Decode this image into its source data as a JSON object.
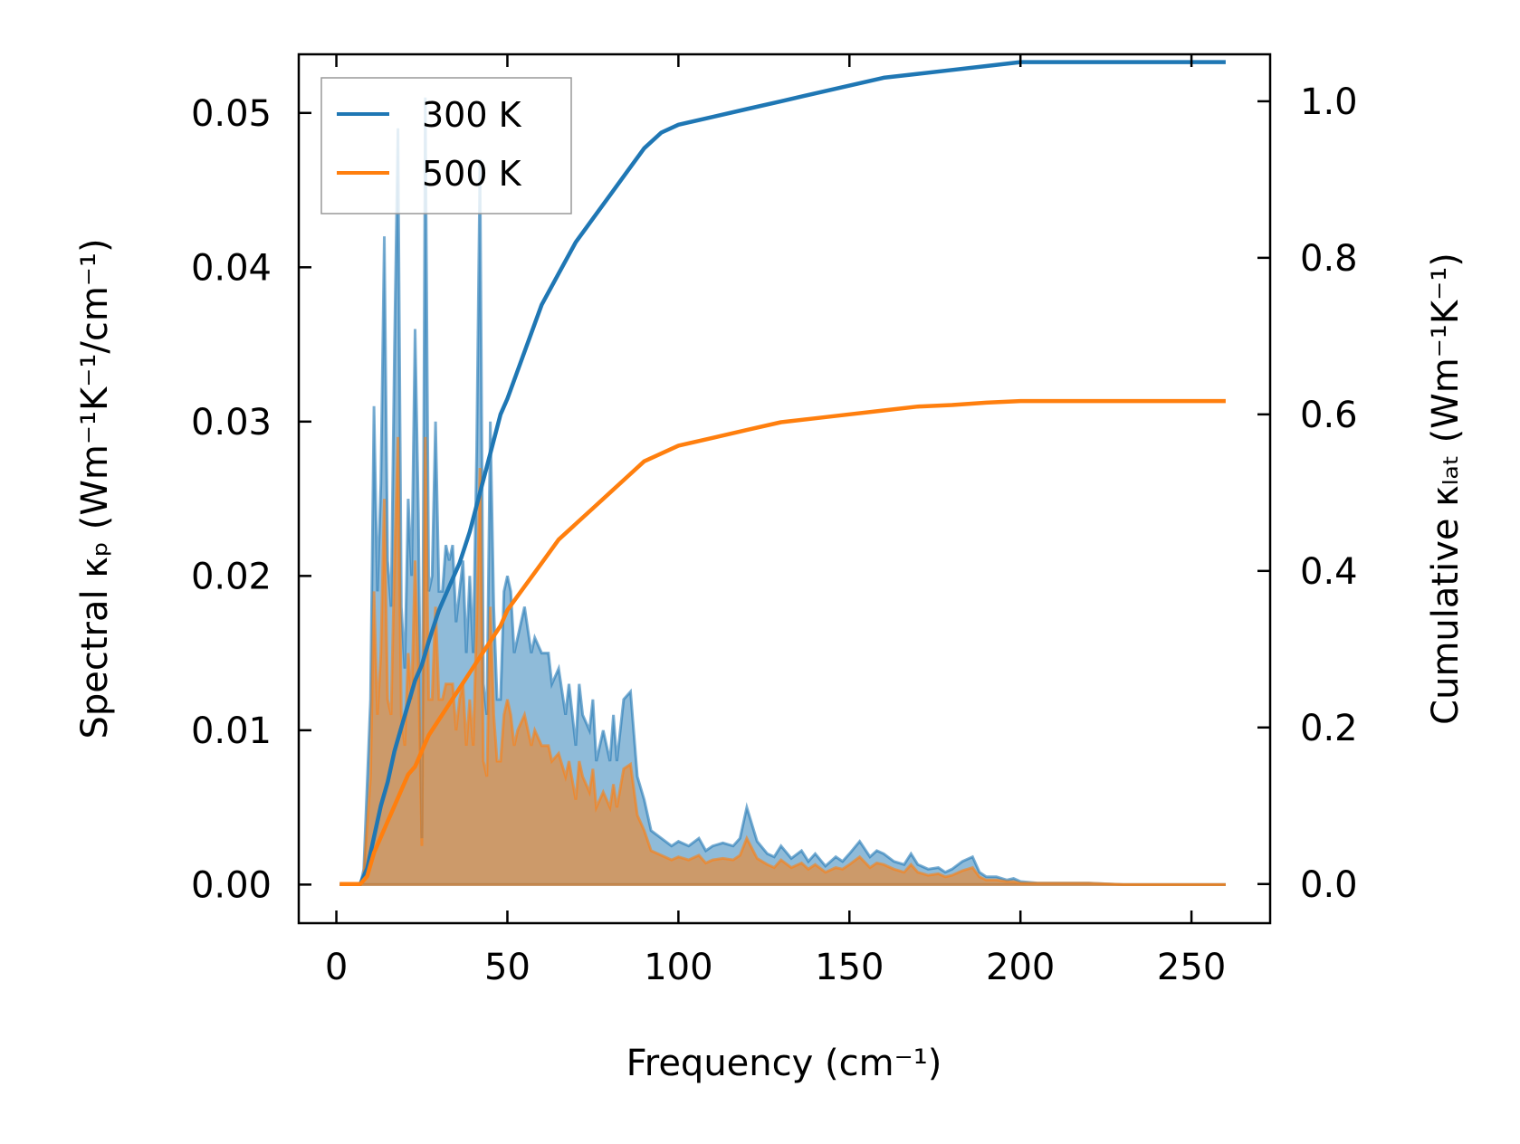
{
  "chart_data": {
    "type": "line",
    "xlabel": "Frequency (cm⁻¹)",
    "ylabel_left": "Spectral κₚ (Wm⁻¹K⁻¹/cm⁻¹)",
    "ylabel_right": "Cumulative κₗₐₜ (Wm⁻¹K⁻¹)",
    "xlim": [
      -11,
      273
    ],
    "ylim_left": [
      -0.0025,
      0.0538
    ],
    "ylim_right": [
      -0.05,
      1.06
    ],
    "xticks": [
      0,
      50,
      100,
      150,
      200,
      250
    ],
    "xtick_labels": [
      "0",
      "50",
      "100",
      "150",
      "200",
      "250"
    ],
    "yticks_left": [
      0.0,
      0.01,
      0.02,
      0.03,
      0.04,
      0.05
    ],
    "ytick_labels_left": [
      "0.00",
      "0.01",
      "0.02",
      "0.03",
      "0.04",
      "0.05"
    ],
    "yticks_right": [
      0.0,
      0.2,
      0.4,
      0.6,
      0.8,
      1.0
    ],
    "ytick_labels_right": [
      "0.0",
      "0.2",
      "0.4",
      "0.6",
      "0.8",
      "1.0"
    ],
    "legend_position": "top-left",
    "series": [
      {
        "name": "300 K",
        "color": "#1f77b4",
        "fill_color": "#1f77b4",
        "spectral": {
          "x": [
            1,
            5,
            7,
            8,
            10,
            11,
            12,
            13,
            14,
            15,
            16,
            17,
            18,
            19,
            20,
            21,
            22,
            23,
            24,
            25,
            26,
            27,
            28,
            29,
            30,
            31,
            32,
            33,
            34,
            35,
            36,
            37,
            38,
            39,
            40,
            41,
            42,
            43,
            44,
            45,
            46,
            47,
            48,
            49,
            50,
            51,
            52,
            53,
            55,
            57,
            58,
            60,
            62,
            63,
            65,
            67,
            68,
            70,
            71,
            72,
            74,
            75,
            76,
            78,
            80,
            81,
            82,
            84,
            86,
            88,
            90,
            92,
            95,
            98,
            100,
            103,
            106,
            108,
            110,
            113,
            116,
            118,
            120,
            123,
            126,
            128,
            130,
            133,
            136,
            138,
            140,
            143,
            146,
            148,
            150,
            153,
            156,
            158,
            160,
            163,
            166,
            168,
            170,
            173,
            176,
            178,
            180,
            183,
            186,
            188,
            190,
            193,
            196,
            198,
            200,
            205,
            210,
            220,
            230,
            240,
            250,
            260
          ],
          "y": [
            0,
            0,
            0,
            0.001,
            0.012,
            0.031,
            0.019,
            0.026,
            0.042,
            0.021,
            0.018,
            0.035,
            0.049,
            0.018,
            0.014,
            0.025,
            0.02,
            0.036,
            0.024,
            0.003,
            0.051,
            0.019,
            0.02,
            0.03,
            0.019,
            0.019,
            0.022,
            0.021,
            0.022,
            0.017,
            0.019,
            0.021,
            0.015,
            0.02,
            0.015,
            0.028,
            0.047,
            0.013,
            0.011,
            0.03,
            0.018,
            0.012,
            0.012,
            0.019,
            0.02,
            0.019,
            0.015,
            0.016,
            0.018,
            0.015,
            0.016,
            0.015,
            0.015,
            0.013,
            0.014,
            0.011,
            0.013,
            0.009,
            0.013,
            0.011,
            0.01,
            0.012,
            0.008,
            0.01,
            0.008,
            0.011,
            0.008,
            0.012,
            0.0125,
            0.007,
            0.0055,
            0.0035,
            0.003,
            0.0025,
            0.0028,
            0.0025,
            0.003,
            0.0022,
            0.0025,
            0.0027,
            0.0025,
            0.003,
            0.005,
            0.0028,
            0.002,
            0.0018,
            0.0025,
            0.0017,
            0.0022,
            0.0015,
            0.002,
            0.0012,
            0.0018,
            0.0015,
            0.002,
            0.0028,
            0.0018,
            0.0022,
            0.002,
            0.0015,
            0.0013,
            0.002,
            0.0013,
            0.001,
            0.0011,
            0.0008,
            0.001,
            0.0015,
            0.0018,
            0.0008,
            0.0005,
            0.0005,
            0.0003,
            0.0004,
            0.0002,
            0.0001,
            0.0001,
            0.0001,
            0,
            0,
            0,
            0
          ]
        },
        "cumulative": {
          "x": [
            1,
            5,
            7,
            9,
            11,
            13,
            15,
            17,
            19,
            21,
            23,
            25,
            27,
            30,
            33,
            36,
            39,
            42,
            45,
            48,
            50,
            55,
            60,
            65,
            70,
            75,
            80,
            85,
            90,
            95,
            100,
            110,
            120,
            130,
            140,
            150,
            160,
            170,
            180,
            190,
            200,
            210,
            220,
            230,
            240,
            250,
            260
          ],
          "y": [
            0,
            0,
            0,
            0.02,
            0.06,
            0.1,
            0.13,
            0.17,
            0.2,
            0.23,
            0.26,
            0.28,
            0.31,
            0.35,
            0.38,
            0.41,
            0.45,
            0.5,
            0.55,
            0.6,
            0.62,
            0.68,
            0.74,
            0.78,
            0.82,
            0.85,
            0.88,
            0.91,
            0.94,
            0.96,
            0.97,
            0.98,
            0.99,
            1.0,
            1.01,
            1.02,
            1.03,
            1.035,
            1.04,
            1.045,
            1.05,
            1.05,
            1.05,
            1.05,
            1.05,
            1.05,
            1.05
          ]
        }
      },
      {
        "name": "500 K",
        "color": "#ff7f0e",
        "fill_color": "#ff7f0e",
        "spectral": {
          "x": [
            1,
            5,
            7,
            8,
            10,
            11,
            12,
            13,
            14,
            15,
            16,
            17,
            18,
            19,
            20,
            21,
            22,
            23,
            24,
            25,
            26,
            27,
            28,
            29,
            30,
            31,
            32,
            33,
            34,
            35,
            36,
            37,
            38,
            39,
            40,
            41,
            42,
            43,
            44,
            45,
            46,
            47,
            48,
            49,
            50,
            51,
            52,
            53,
            55,
            57,
            58,
            60,
            62,
            63,
            65,
            67,
            68,
            70,
            71,
            72,
            74,
            75,
            76,
            78,
            80,
            81,
            82,
            84,
            86,
            88,
            90,
            92,
            95,
            98,
            100,
            103,
            106,
            108,
            110,
            113,
            116,
            118,
            120,
            123,
            126,
            128,
            130,
            133,
            136,
            138,
            140,
            143,
            146,
            148,
            150,
            153,
            156,
            158,
            160,
            163,
            166,
            168,
            170,
            173,
            176,
            178,
            180,
            183,
            186,
            188,
            190,
            193,
            196,
            198,
            200,
            205,
            210,
            220,
            230,
            240,
            250,
            260
          ],
          "y": [
            0,
            0,
            0,
            0.0006,
            0.007,
            0.019,
            0.011,
            0.015,
            0.025,
            0.012,
            0.011,
            0.021,
            0.029,
            0.011,
            0.009,
            0.015,
            0.012,
            0.021,
            0.014,
            0.0025,
            0.029,
            0.012,
            0.012,
            0.018,
            0.012,
            0.012,
            0.013,
            0.013,
            0.013,
            0.01,
            0.012,
            0.013,
            0.009,
            0.012,
            0.009,
            0.017,
            0.027,
            0.008,
            0.007,
            0.018,
            0.011,
            0.008,
            0.008,
            0.011,
            0.012,
            0.011,
            0.009,
            0.01,
            0.011,
            0.009,
            0.01,
            0.009,
            0.009,
            0.008,
            0.0085,
            0.007,
            0.008,
            0.0055,
            0.008,
            0.007,
            0.006,
            0.0075,
            0.005,
            0.006,
            0.005,
            0.0065,
            0.005,
            0.0075,
            0.0078,
            0.0045,
            0.0035,
            0.0022,
            0.0019,
            0.0016,
            0.0018,
            0.0016,
            0.0019,
            0.0014,
            0.0016,
            0.0017,
            0.0016,
            0.0019,
            0.003,
            0.0017,
            0.0013,
            0.0011,
            0.0016,
            0.0011,
            0.0014,
            0.001,
            0.0013,
            0.0008,
            0.0011,
            0.001,
            0.0013,
            0.0018,
            0.0011,
            0.0014,
            0.0013,
            0.001,
            0.0008,
            0.0013,
            0.0008,
            0.0006,
            0.0007,
            0.0005,
            0.0006,
            0.0009,
            0.0011,
            0.0005,
            0.0003,
            0.0003,
            0.0002,
            0.0002,
            0.0001,
            0.0001,
            0.0001,
            0.0001,
            0,
            0,
            0,
            0
          ]
        },
        "cumulative": {
          "x": [
            1,
            5,
            7,
            9,
            11,
            13,
            15,
            17,
            19,
            21,
            23,
            25,
            27,
            30,
            33,
            36,
            39,
            42,
            45,
            48,
            50,
            55,
            60,
            65,
            70,
            75,
            80,
            85,
            90,
            95,
            100,
            110,
            120,
            130,
            140,
            150,
            160,
            170,
            180,
            190,
            200,
            210,
            220,
            230,
            240,
            250,
            260
          ],
          "y": [
            0,
            0,
            0,
            0.01,
            0.04,
            0.06,
            0.08,
            0.1,
            0.12,
            0.14,
            0.15,
            0.17,
            0.19,
            0.21,
            0.23,
            0.25,
            0.27,
            0.29,
            0.31,
            0.33,
            0.35,
            0.38,
            0.41,
            0.44,
            0.46,
            0.48,
            0.5,
            0.52,
            0.54,
            0.55,
            0.56,
            0.57,
            0.58,
            0.59,
            0.595,
            0.6,
            0.605,
            0.61,
            0.612,
            0.615,
            0.617,
            0.617,
            0.617,
            0.617,
            0.617,
            0.617,
            0.617
          ]
        }
      }
    ]
  }
}
